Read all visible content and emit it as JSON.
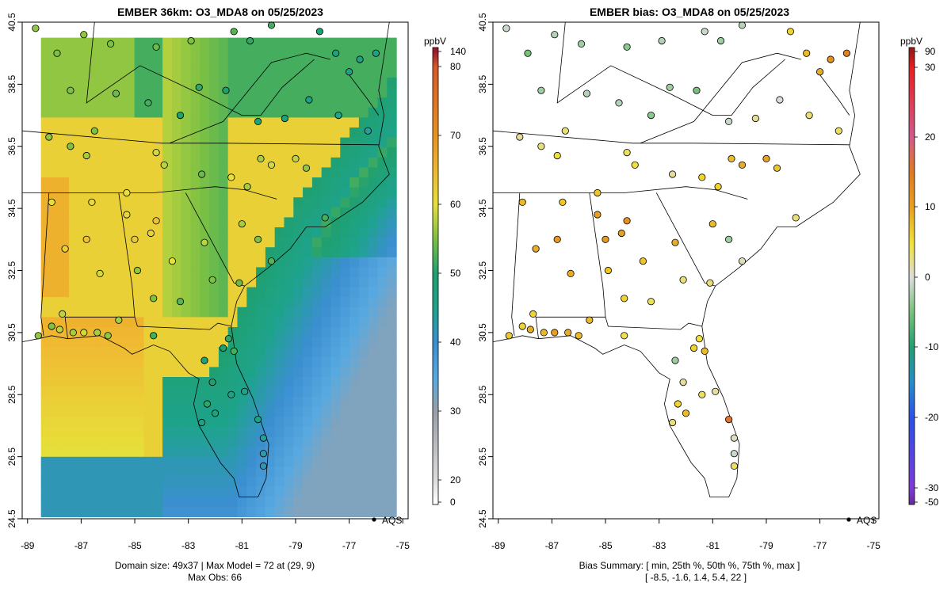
{
  "chart_data": [
    {
      "type": "heatmap",
      "title": "EMBER 36km: O3_MDA8 on 05/25/2023",
      "colorbar_unit": "ppbV",
      "colorbar_ticks": [
        "140",
        "80",
        "70",
        "60",
        "50",
        "40",
        "30",
        "20",
        "0"
      ],
      "colorbar_values": [
        140,
        80,
        70,
        60,
        50,
        40,
        30,
        20,
        0
      ],
      "xticks": [
        "-89",
        "-87",
        "-85",
        "-83",
        "-81",
        "-79",
        "-77",
        "-75"
      ],
      "yticks": [
        "40.5",
        "38.5",
        "36.5",
        "34.5",
        "32.5",
        "30.5",
        "28.5",
        "26.5",
        "24.5"
      ],
      "xlim": [
        -89.2,
        -74.8
      ],
      "ylim": [
        24.5,
        40.5
      ],
      "legend_label": "AQS",
      "footer_line1": "Domain size: 49x37 | Max Model = 72 at (29, 9)",
      "footer_line2": "Max Obs: 66",
      "domain_size": "49x37",
      "max_model": 72,
      "max_obs": 66
    },
    {
      "type": "scatter",
      "title": "EMBER bias: O3_MDA8 on 05/25/2023",
      "colorbar_unit": "ppbV",
      "colorbar_ticks": [
        "90",
        "30",
        "20",
        "10",
        "0",
        "-10",
        "-20",
        "-30",
        "-50"
      ],
      "colorbar_values": [
        90,
        30,
        20,
        10,
        0,
        -10,
        -20,
        -30,
        -50
      ],
      "xticks": [
        "-89",
        "-87",
        "-85",
        "-83",
        "-81",
        "-79",
        "-77",
        "-75"
      ],
      "yticks": [
        "40.5",
        "38.5",
        "36.5",
        "34.5",
        "32.5",
        "30.5",
        "28.5",
        "26.5",
        "24.5"
      ],
      "xlim": [
        -89.2,
        -74.8
      ],
      "ylim": [
        24.5,
        40.5
      ],
      "legend_label": "AQS",
      "footer_line1": "Bias Summary: [ min, 25th %, 50th %, 75th %, max ]",
      "footer_line2": "[ -8.5,   -1.6,   1.4,   5.4,   22 ]",
      "bias_summary": [
        -8.5,
        -1.6,
        1.4,
        5.4,
        22
      ]
    }
  ]
}
